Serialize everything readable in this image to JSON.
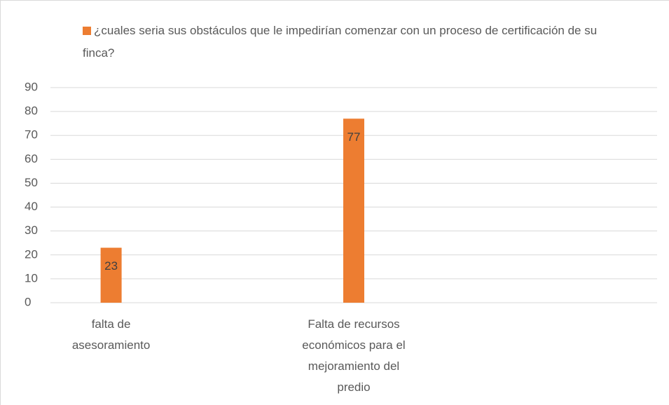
{
  "chart_data": {
    "type": "bar",
    "categories": [
      "falta de asesoramiento",
      "Falta de recursos económicos para el mejoramiento del predio"
    ],
    "series": [
      {
        "name": "¿cuales seria sus obstáculos que le impedirían comenzar con un proceso de certificación de su finca?",
        "color": "#ed7d31",
        "values": [
          23,
          77
        ]
      }
    ],
    "ylim": [
      0,
      90
    ],
    "yticks": [
      0,
      10,
      20,
      30,
      40,
      50,
      60,
      70,
      80,
      90
    ],
    "grid": true,
    "legend": "top"
  }
}
